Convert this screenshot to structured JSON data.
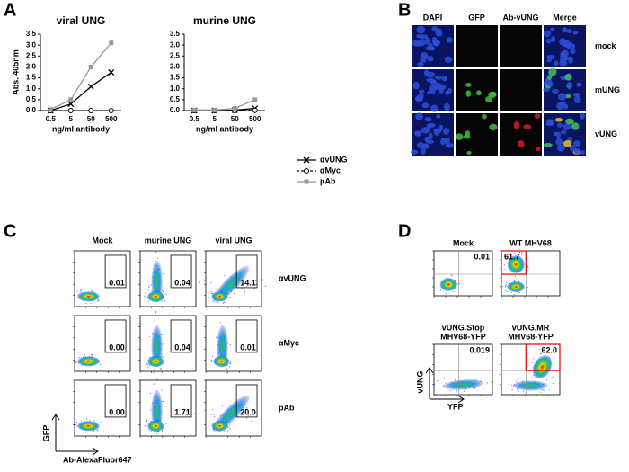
{
  "panel_labels": [
    "A",
    "B",
    "C",
    "D"
  ],
  "chart_data": [
    {
      "type": "line",
      "title": "viral UNG",
      "y_label": "Abs. 405nm",
      "x_label": "ng/ml antibody",
      "categories": [
        "0.5",
        "5",
        "50",
        "500"
      ],
      "ylim": [
        0,
        3.5
      ],
      "yticks": [
        {
          "value": 0,
          "label": "0.0"
        },
        0.5,
        {
          "value": 1,
          "label": "1.0"
        },
        1.5,
        {
          "value": 2,
          "label": "2.0"
        },
        2.5,
        {
          "value": 3,
          "label": "3.0"
        },
        3.5
      ],
      "series": [
        {
          "color": "#000000",
          "marker": "x",
          "dash": false,
          "values": [
            0,
            0.3,
            1.1,
            1.75
          ]
        },
        {
          "color": "#000000",
          "marker": "circle",
          "dash": true,
          "values": [
            0,
            0,
            0,
            0
          ]
        },
        {
          "color": "#999999",
          "marker": "square",
          "dash": false,
          "values": [
            0.05,
            0.5,
            2.0,
            3.1
          ]
        }
      ]
    },
    {
      "type": "line",
      "title": "murine UNG",
      "x_label": "ng/ml antibody",
      "categories": [
        "0.5",
        "5",
        "50",
        "500"
      ],
      "ylim": [
        0,
        3.5
      ],
      "yticks": [
        {
          "value": 0,
          "label": "0.0"
        },
        0.5,
        {
          "value": 1,
          "label": "1.0"
        },
        1.5,
        {
          "value": 2,
          "label": "2.0"
        },
        2.5,
        {
          "value": 3,
          "label": "3.0"
        },
        3.5
      ],
      "series": [
        {
          "name": "αvUNG",
          "color": "#000000",
          "marker": "x",
          "dash": false,
          "values": [
            0,
            0,
            0.02,
            0.1
          ]
        },
        {
          "name": "αMyc",
          "color": "#000000",
          "marker": "circle",
          "dash": true,
          "values": [
            0,
            0,
            0,
            0.01
          ]
        },
        {
          "name": "pAb",
          "color": "#999999",
          "marker": "square",
          "dash": false,
          "values": [
            0.03,
            0.03,
            0.1,
            0.5
          ]
        }
      ]
    }
  ],
  "microscopy": {
    "columns": [
      "DAPI",
      "GFP",
      "Ab-vUNG",
      "Merge"
    ],
    "rows": [
      "mock",
      "mUNG",
      "vUNG"
    ]
  },
  "flow_c": {
    "columns": [
      "Mock",
      "murine UNG",
      "viral UNG"
    ],
    "rows": [
      "αvUNG",
      "αMyc",
      "pAb"
    ],
    "values": [
      [
        "0.01",
        "0.04",
        "14.1"
      ],
      [
        "0.00",
        "0.04",
        "0.01"
      ],
      [
        "0.00",
        "1.71",
        "20.0"
      ]
    ],
    "y_label": "GFP",
    "x_label": "Ab-AlexaFluor647"
  },
  "flow_d": {
    "plots": [
      {
        "title": [
          "Mock"
        ],
        "value": "0.01"
      },
      {
        "title": [
          "WT MHV68"
        ],
        "value": "61.7"
      },
      {
        "title": [
          "vUNG.Stop",
          "MHV68-YFP"
        ],
        "value": "0.019"
      },
      {
        "title": [
          "vUNG.MR",
          "MHV68-YFP"
        ],
        "value": "62.0"
      }
    ],
    "y_label": "vUNG",
    "x_label": "YFP"
  }
}
